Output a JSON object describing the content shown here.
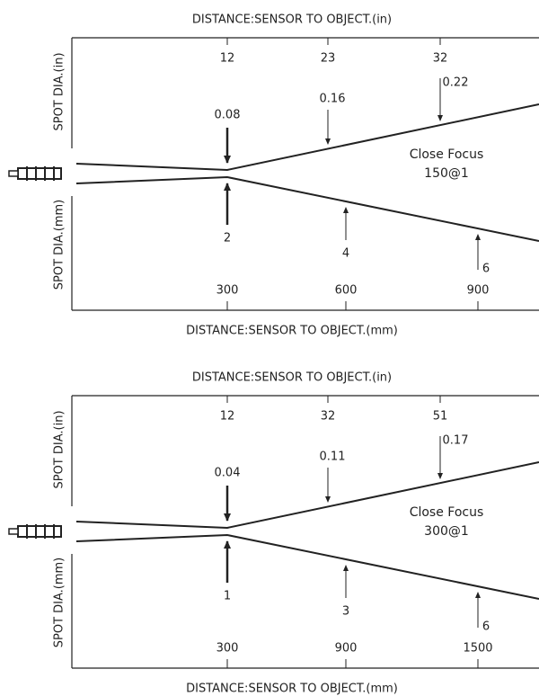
{
  "panels": [
    {
      "top_axis_title": "DISTANCE:SENSOR TO OBJECT.(in)",
      "bottom_axis_title": "DISTANCE:SENSOR TO OBJECT.(mm)",
      "upper_side_label": "SPOT DIA.(in)",
      "lower_side_label": "SPOT DIA.(mm)",
      "top_ticks": [
        "12",
        "23",
        "32"
      ],
      "bottom_ticks": [
        "300",
        "600",
        "900"
      ],
      "upper_spots": [
        "0.08",
        "0.16",
        "0.22"
      ],
      "lower_spots": [
        "2",
        "4",
        "6"
      ],
      "note": [
        "Close Focus",
        "150@1"
      ]
    },
    {
      "top_axis_title": "DISTANCE:SENSOR TO OBJECT.(in)",
      "bottom_axis_title": "DISTANCE:SENSOR TO OBJECT.(mm)",
      "upper_side_label": "SPOT DIA.(in)",
      "lower_side_label": "SPOT DIA.(mm)",
      "top_ticks": [
        "12",
        "32",
        "51"
      ],
      "bottom_ticks": [
        "300",
        "900",
        "1500"
      ],
      "upper_spots": [
        "0.04",
        "0.11",
        "0.17"
      ],
      "lower_spots": [
        "1",
        "3",
        "6"
      ],
      "note": [
        "Close Focus",
        "300@1"
      ]
    }
  ]
}
